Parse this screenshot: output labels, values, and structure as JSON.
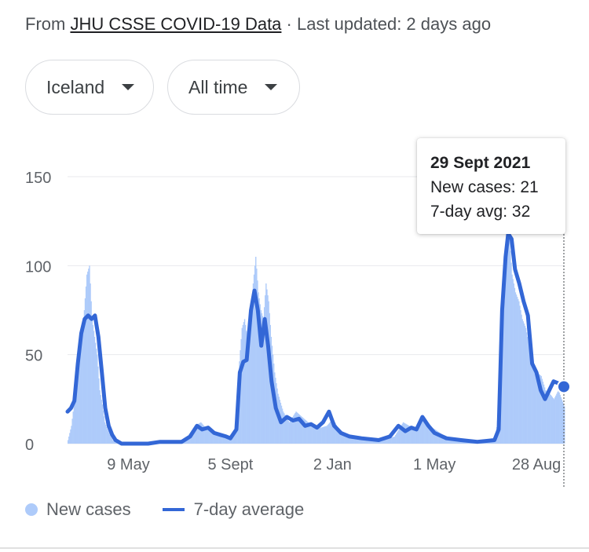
{
  "source": {
    "prefix": "From ",
    "link": "JHU CSSE COVID-19 Data",
    "suffix": " · Last updated: 2 days ago"
  },
  "filters": {
    "country": "Iceland",
    "range": "All time"
  },
  "tooltip": {
    "date": "29 Sept 2021",
    "new_cases": "New cases: 21",
    "avg": "7-day avg: 32"
  },
  "legend": {
    "new_cases": "New cases",
    "avg": "7-day average"
  },
  "colors": {
    "bars": "#aecbfa",
    "line": "#3367d6",
    "grid": "#e8eaed"
  },
  "chart_data": {
    "type": "bar",
    "title": "",
    "xlabel": "",
    "ylabel": "",
    "x_range": [
      "2020-02-28",
      "2021-09-29"
    ],
    "ylim": [
      0,
      150
    ],
    "y_ticks": [
      0,
      50,
      100,
      150
    ],
    "x_ticks": [
      {
        "date": "2020-05-09",
        "label": "9 May"
      },
      {
        "date": "2020-09-05",
        "label": "5 Sept"
      },
      {
        "date": "2021-01-02",
        "label": "2 Jan"
      },
      {
        "date": "2021-05-01",
        "label": "1 May"
      },
      {
        "date": "2021-08-28",
        "label": "28 Aug"
      }
    ],
    "series": [
      {
        "name": "New cases",
        "type": "bar",
        "points": [
          [
            "2020-02-28",
            2
          ],
          [
            "2020-03-03",
            10
          ],
          [
            "2020-03-06",
            22
          ],
          [
            "2020-03-09",
            30
          ],
          [
            "2020-03-12",
            45
          ],
          [
            "2020-03-15",
            60
          ],
          [
            "2020-03-18",
            75
          ],
          [
            "2020-03-21",
            95
          ],
          [
            "2020-03-24",
            100
          ],
          [
            "2020-03-27",
            70
          ],
          [
            "2020-03-30",
            60
          ],
          [
            "2020-04-02",
            50
          ],
          [
            "2020-04-05",
            30
          ],
          [
            "2020-04-08",
            22
          ],
          [
            "2020-04-11",
            12
          ],
          [
            "2020-04-14",
            8
          ],
          [
            "2020-04-17",
            5
          ],
          [
            "2020-04-20",
            2
          ],
          [
            "2020-04-23",
            1
          ],
          [
            "2020-04-26",
            1
          ],
          [
            "2020-05-01",
            0
          ],
          [
            "2020-05-15",
            0
          ],
          [
            "2020-06-01",
            1
          ],
          [
            "2020-06-15",
            2
          ],
          [
            "2020-07-01",
            1
          ],
          [
            "2020-07-15",
            3
          ],
          [
            "2020-07-25",
            10
          ],
          [
            "2020-08-01",
            12
          ],
          [
            "2020-08-08",
            8
          ],
          [
            "2020-08-15",
            6
          ],
          [
            "2020-08-22",
            5
          ],
          [
            "2020-08-29",
            4
          ],
          [
            "2020-09-05",
            3
          ],
          [
            "2020-09-10",
            8
          ],
          [
            "2020-09-14",
            40
          ],
          [
            "2020-09-18",
            65
          ],
          [
            "2020-09-21",
            70
          ],
          [
            "2020-09-24",
            60
          ],
          [
            "2020-09-28",
            72
          ],
          [
            "2020-10-01",
            90
          ],
          [
            "2020-10-04",
            105
          ],
          [
            "2020-10-07",
            85
          ],
          [
            "2020-10-10",
            75
          ],
          [
            "2020-10-13",
            70
          ],
          [
            "2020-10-16",
            90
          ],
          [
            "2020-10-19",
            80
          ],
          [
            "2020-10-22",
            60
          ],
          [
            "2020-10-26",
            40
          ],
          [
            "2020-10-30",
            28
          ],
          [
            "2020-11-05",
            18
          ],
          [
            "2020-11-12",
            12
          ],
          [
            "2020-11-20",
            18
          ],
          [
            "2020-11-27",
            15
          ],
          [
            "2020-12-04",
            12
          ],
          [
            "2020-12-12",
            10
          ],
          [
            "2020-12-19",
            9
          ],
          [
            "2020-12-26",
            10
          ],
          [
            "2021-01-02",
            14
          ],
          [
            "2021-01-09",
            8
          ],
          [
            "2021-01-16",
            5
          ],
          [
            "2021-01-30",
            4
          ],
          [
            "2021-02-15",
            3
          ],
          [
            "2021-03-01",
            2
          ],
          [
            "2021-03-15",
            4
          ],
          [
            "2021-03-25",
            12
          ],
          [
            "2021-04-01",
            10
          ],
          [
            "2021-04-10",
            8
          ],
          [
            "2021-04-17",
            14
          ],
          [
            "2021-04-24",
            10
          ],
          [
            "2021-05-01",
            8
          ],
          [
            "2021-05-10",
            5
          ],
          [
            "2021-05-20",
            3
          ],
          [
            "2021-06-01",
            2
          ],
          [
            "2021-06-15",
            1
          ],
          [
            "2021-07-01",
            1
          ],
          [
            "2021-07-10",
            2
          ],
          [
            "2021-07-15",
            20
          ],
          [
            "2021-07-18",
            60
          ],
          [
            "2021-07-21",
            80
          ],
          [
            "2021-07-24",
            120
          ],
          [
            "2021-07-27",
            115
          ],
          [
            "2021-07-30",
            95
          ],
          [
            "2021-08-03",
            85
          ],
          [
            "2021-08-07",
            80
          ],
          [
            "2021-08-11",
            70
          ],
          [
            "2021-08-15",
            65
          ],
          [
            "2021-08-19",
            55
          ],
          [
            "2021-08-23",
            45
          ],
          [
            "2021-08-28",
            40
          ],
          [
            "2021-09-02",
            38
          ],
          [
            "2021-09-07",
            30
          ],
          [
            "2021-09-12",
            28
          ],
          [
            "2021-09-17",
            25
          ],
          [
            "2021-09-22",
            30
          ],
          [
            "2021-09-29",
            21
          ]
        ]
      },
      {
        "name": "7-day average",
        "type": "line",
        "points": [
          [
            "2020-02-28",
            18
          ],
          [
            "2020-03-03",
            20
          ],
          [
            "2020-03-07",
            24
          ],
          [
            "2020-03-11",
            45
          ],
          [
            "2020-03-15",
            62
          ],
          [
            "2020-03-19",
            70
          ],
          [
            "2020-03-23",
            72
          ],
          [
            "2020-03-27",
            70
          ],
          [
            "2020-03-31",
            72
          ],
          [
            "2020-04-04",
            60
          ],
          [
            "2020-04-08",
            40
          ],
          [
            "2020-04-12",
            20
          ],
          [
            "2020-04-16",
            10
          ],
          [
            "2020-04-20",
            5
          ],
          [
            "2020-04-24",
            2
          ],
          [
            "2020-05-01",
            0
          ],
          [
            "2020-06-01",
            0
          ],
          [
            "2020-06-15",
            1
          ],
          [
            "2020-07-10",
            1
          ],
          [
            "2020-07-20",
            4
          ],
          [
            "2020-07-28",
            10
          ],
          [
            "2020-08-03",
            8
          ],
          [
            "2020-08-10",
            9
          ],
          [
            "2020-08-17",
            6
          ],
          [
            "2020-08-24",
            5
          ],
          [
            "2020-08-31",
            4
          ],
          [
            "2020-09-05",
            3
          ],
          [
            "2020-09-12",
            8
          ],
          [
            "2020-09-16",
            40
          ],
          [
            "2020-09-20",
            46
          ],
          [
            "2020-09-24",
            47
          ],
          [
            "2020-09-29",
            75
          ],
          [
            "2020-10-03",
            86
          ],
          [
            "2020-10-07",
            75
          ],
          [
            "2020-10-11",
            55
          ],
          [
            "2020-10-15",
            70
          ],
          [
            "2020-10-19",
            55
          ],
          [
            "2020-10-23",
            35
          ],
          [
            "2020-10-28",
            20
          ],
          [
            "2020-11-03",
            12
          ],
          [
            "2020-11-10",
            15
          ],
          [
            "2020-11-17",
            13
          ],
          [
            "2020-11-24",
            14
          ],
          [
            "2020-12-01",
            10
          ],
          [
            "2020-12-08",
            11
          ],
          [
            "2020-12-15",
            9
          ],
          [
            "2020-12-22",
            12
          ],
          [
            "2020-12-29",
            18
          ],
          [
            "2021-01-04",
            10
          ],
          [
            "2021-01-12",
            6
          ],
          [
            "2021-01-22",
            4
          ],
          [
            "2021-02-05",
            3
          ],
          [
            "2021-02-25",
            2
          ],
          [
            "2021-03-10",
            4
          ],
          [
            "2021-03-20",
            10
          ],
          [
            "2021-03-28",
            7
          ],
          [
            "2021-04-04",
            9
          ],
          [
            "2021-04-10",
            8
          ],
          [
            "2021-04-17",
            15
          ],
          [
            "2021-04-24",
            10
          ],
          [
            "2021-05-01",
            6
          ],
          [
            "2021-05-15",
            3
          ],
          [
            "2021-06-01",
            2
          ],
          [
            "2021-06-20",
            1
          ],
          [
            "2021-07-10",
            2
          ],
          [
            "2021-07-15",
            8
          ],
          [
            "2021-07-19",
            75
          ],
          [
            "2021-07-23",
            105
          ],
          [
            "2021-07-26",
            118
          ],
          [
            "2021-07-30",
            115
          ],
          [
            "2021-08-03",
            98
          ],
          [
            "2021-08-08",
            90
          ],
          [
            "2021-08-13",
            80
          ],
          [
            "2021-08-18",
            72
          ],
          [
            "2021-08-23",
            45
          ],
          [
            "2021-08-28",
            40
          ],
          [
            "2021-09-02",
            30
          ],
          [
            "2021-09-07",
            25
          ],
          [
            "2021-09-12",
            30
          ],
          [
            "2021-09-17",
            35
          ],
          [
            "2021-09-22",
            34
          ],
          [
            "2021-09-29",
            32
          ]
        ]
      }
    ],
    "highlight": {
      "date": "2021-09-29",
      "value": 32
    },
    "grid": true,
    "legend_position": "bottom-left"
  }
}
